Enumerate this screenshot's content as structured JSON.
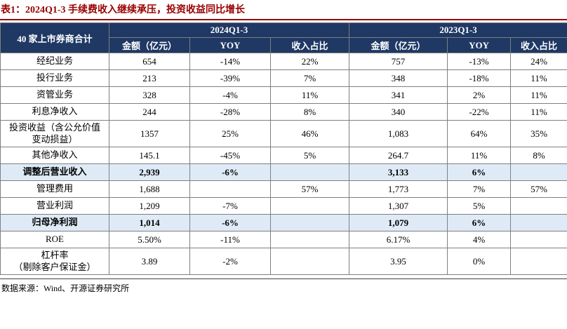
{
  "title": "表1：2024Q1-3 手续费收入继续承压，投资收益同比增长",
  "source": "数据来源：Wind、开源证券研究所",
  "colors": {
    "title_red": "#990000",
    "header_navy": "#1F3864",
    "highlight_blue": "#DEEBF7"
  },
  "table": {
    "corner_label": "40 家上市券商合计",
    "group_headers": [
      "2024Q1-3",
      "2023Q1-3"
    ],
    "sub_headers": [
      "金额（亿元）",
      "YOY",
      "收入占比",
      "金额（亿元）",
      "YOY",
      "收入占比"
    ],
    "rows": [
      {
        "label": "经纪业务",
        "cells": [
          "654",
          "-14%",
          "22%",
          "757",
          "-13%",
          "24%"
        ],
        "highlight": false,
        "tall": false
      },
      {
        "label": "投行业务",
        "cells": [
          "213",
          "-39%",
          "7%",
          "348",
          "-18%",
          "11%"
        ],
        "highlight": false,
        "tall": false
      },
      {
        "label": "资管业务",
        "cells": [
          "328",
          "-4%",
          "11%",
          "341",
          "2%",
          "11%"
        ],
        "highlight": false,
        "tall": false
      },
      {
        "label": "利息净收入",
        "cells": [
          "244",
          "-28%",
          "8%",
          "340",
          "-22%",
          "11%"
        ],
        "highlight": false,
        "tall": false
      },
      {
        "label": "投资收益（含公允价值\n变动损益）",
        "cells": [
          "1357",
          "25%",
          "46%",
          "1,083",
          "64%",
          "35%"
        ],
        "highlight": false,
        "tall": true
      },
      {
        "label": "其他净收入",
        "cells": [
          "145.1",
          "-45%",
          "5%",
          "264.7",
          "11%",
          "8%"
        ],
        "highlight": false,
        "tall": false
      },
      {
        "label": "调整后营业收入",
        "cells": [
          "2,939",
          "-6%",
          "",
          "3,133",
          "6%",
          ""
        ],
        "highlight": true,
        "tall": false
      },
      {
        "label": "管理费用",
        "cells": [
          "1,688",
          "",
          "57%",
          "1,773",
          "7%",
          "57%"
        ],
        "highlight": false,
        "tall": false
      },
      {
        "label": "营业利润",
        "cells": [
          "1,209",
          "-7%",
          "",
          "1,307",
          "5%",
          ""
        ],
        "highlight": false,
        "tall": false
      },
      {
        "label": "归母净利润",
        "cells": [
          "1,014",
          "-6%",
          "",
          "1,079",
          "6%",
          ""
        ],
        "highlight": true,
        "tall": false
      },
      {
        "label": "ROE",
        "cells": [
          "5.50%",
          "-11%",
          "",
          "6.17%",
          "4%",
          ""
        ],
        "highlight": false,
        "tall": false
      },
      {
        "label": "杠杆率\n（剔除客户保证金）",
        "cells": [
          "3.89",
          "-2%",
          "",
          "3.95",
          "0%",
          ""
        ],
        "highlight": false,
        "tall": true
      }
    ]
  }
}
